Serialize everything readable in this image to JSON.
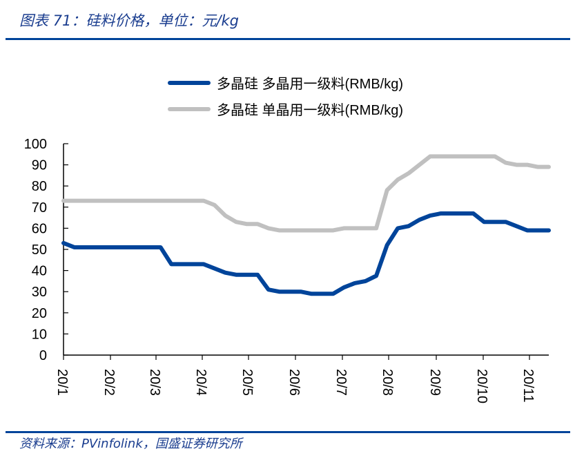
{
  "header": {
    "title": "图表 71：硅料价格，单位：元/kg"
  },
  "footer": {
    "source": "资料来源：PVinfolink，国盛证券研究所"
  },
  "colors": {
    "accent": "#00449a",
    "series1": "#00449a",
    "series2": "#c0c0c0"
  },
  "chart_data": {
    "type": "line",
    "title": "",
    "xlabel": "",
    "ylabel": "",
    "ylim": [
      0,
      100
    ],
    "yticks": [
      0,
      10,
      20,
      30,
      40,
      50,
      60,
      70,
      80,
      90,
      100
    ],
    "xtick_labels": [
      "20/1",
      "20/2",
      "20/3",
      "20/4",
      "20/5",
      "20/6",
      "20/7",
      "20/8",
      "20/9",
      "20/10",
      "20/11"
    ],
    "grid": false,
    "legend_placement": "top",
    "series": [
      {
        "name": "多晶硅 多晶用一级料(RMB/kg)",
        "color": "#00449a",
        "values": [
          53,
          51,
          51,
          51,
          51,
          51,
          51,
          51,
          51,
          51,
          43,
          43,
          43,
          43,
          41,
          39,
          38,
          38,
          38,
          31,
          30,
          30,
          30,
          29,
          29,
          29,
          32,
          34,
          35,
          37.5,
          52,
          60,
          61,
          64,
          66,
          67,
          67,
          67,
          67,
          63,
          63,
          63,
          61,
          59,
          59,
          59
        ]
      },
      {
        "name": "多晶硅 单晶用一级料(RMB/kg)",
        "color": "#c0c0c0",
        "values": [
          73,
          73,
          73,
          73,
          73,
          73,
          73,
          73,
          73,
          73,
          73,
          73,
          73,
          73,
          71,
          66,
          63,
          62,
          62,
          60,
          59,
          59,
          59,
          59,
          59,
          59,
          60,
          60,
          60,
          60,
          78,
          83,
          86,
          90,
          94,
          94,
          94,
          94,
          94,
          94,
          94,
          91,
          90,
          90,
          89,
          89
        ]
      }
    ]
  }
}
